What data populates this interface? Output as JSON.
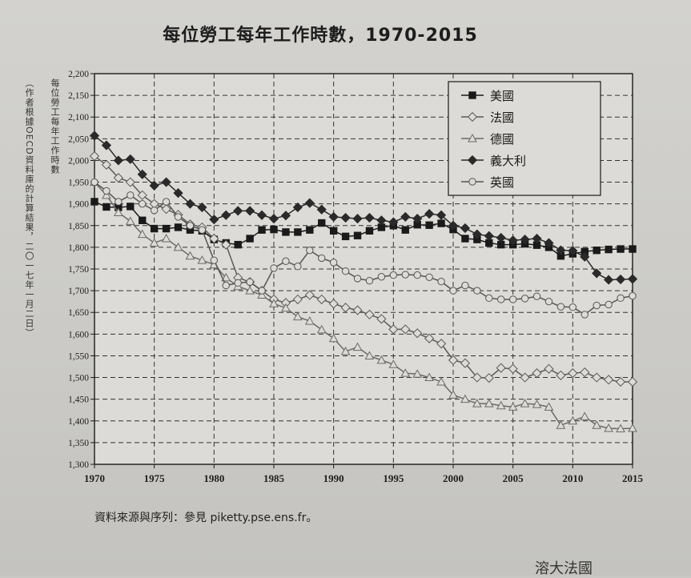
{
  "page": {
    "title": "每位勞工每年工作時數，1970-2015",
    "side_note": "（作者根據OECD資料庫的計算結果，二〇一七年一月二日）",
    "source_note": "資料來源與序列：參見 piketty.pse.ens.fr。",
    "bottom_fragment": "溶大法國"
  },
  "chart_data": {
    "type": "line",
    "title": "每位勞工每年工作時數，1970-2015",
    "xlabel": "",
    "ylabel": "每位勞工每年工作時數",
    "xlim": [
      1970,
      2015
    ],
    "ylim": [
      1300,
      2200
    ],
    "x_ticks": [
      1970,
      1975,
      1980,
      1985,
      1990,
      1995,
      2000,
      2005,
      2010,
      2015
    ],
    "y_ticks": [
      1300,
      1350,
      1400,
      1450,
      1500,
      1550,
      1600,
      1650,
      1700,
      1750,
      1800,
      1850,
      1900,
      1950,
      2000,
      2050,
      2100,
      2150,
      2200
    ],
    "y_tick_labels": [
      "1,300",
      "1,350",
      "1,400",
      "1,450",
      "1,500",
      "1,550",
      "1,600",
      "1,650",
      "1,700",
      "1,750",
      "1,800",
      "1,850",
      "1,900",
      "1,950",
      "2,000",
      "2,050",
      "2,100",
      "2,150",
      "2,200"
    ],
    "grid": true,
    "legend_position": "top-right",
    "x": [
      1970,
      1971,
      1972,
      1973,
      1974,
      1975,
      1976,
      1977,
      1978,
      1979,
      1980,
      1981,
      1982,
      1983,
      1984,
      1985,
      1986,
      1987,
      1988,
      1989,
      1990,
      1991,
      1992,
      1993,
      1994,
      1995,
      1996,
      1997,
      1998,
      1999,
      2000,
      2001,
      2002,
      2003,
      2004,
      2005,
      2006,
      2007,
      2008,
      2009,
      2010,
      2011,
      2012,
      2013,
      2014,
      2015
    ],
    "series": [
      {
        "name": "美國",
        "marker": "square",
        "color": "#1a1a1a",
        "values": [
          1905,
          1893,
          1892,
          1894,
          1862,
          1843,
          1843,
          1846,
          1840,
          1838,
          1818,
          1810,
          1806,
          1820,
          1840,
          1841,
          1835,
          1835,
          1840,
          1856,
          1838,
          1825,
          1827,
          1838,
          1846,
          1850,
          1840,
          1852,
          1851,
          1855,
          1841,
          1820,
          1818,
          1810,
          1806,
          1806,
          1808,
          1805,
          1800,
          1780,
          1785,
          1790,
          1793,
          1795,
          1796,
          1796
        ]
      },
      {
        "name": "法國",
        "marker": "diamond-open",
        "color": "#5a5a5a",
        "values": [
          2010,
          1990,
          1960,
          1950,
          1920,
          1900,
          1888,
          1875,
          1853,
          1846,
          1820,
          1806,
          1730,
          1720,
          1700,
          1680,
          1672,
          1680,
          1690,
          1680,
          1670,
          1661,
          1655,
          1645,
          1635,
          1611,
          1611,
          1602,
          1590,
          1578,
          1540,
          1533,
          1500,
          1499,
          1522,
          1520,
          1500,
          1510,
          1520,
          1505,
          1510,
          1512,
          1500,
          1495,
          1490,
          1490
        ]
      },
      {
        "name": "德國",
        "marker": "triangle-open",
        "color": "#6a6a6a",
        "values": [
          1950,
          1920,
          1880,
          1860,
          1830,
          1810,
          1820,
          1800,
          1780,
          1770,
          1760,
          1730,
          1710,
          1700,
          1690,
          1670,
          1660,
          1640,
          1630,
          1610,
          1590,
          1560,
          1570,
          1550,
          1540,
          1530,
          1510,
          1508,
          1500,
          1490,
          1460,
          1450,
          1440,
          1440,
          1435,
          1432,
          1440,
          1438,
          1432,
          1390,
          1400,
          1410,
          1390,
          1383,
          1382,
          1383
        ]
      },
      {
        "name": "義大利",
        "marker": "diamond",
        "color": "#2a2a2a",
        "values": [
          2057,
          2035,
          2000,
          2003,
          1968,
          1942,
          1950,
          1925,
          1900,
          1892,
          1864,
          1874,
          1884,
          1884,
          1874,
          1866,
          1873,
          1892,
          1902,
          1887,
          1870,
          1868,
          1866,
          1868,
          1862,
          1858,
          1870,
          1866,
          1877,
          1874,
          1850,
          1844,
          1830,
          1826,
          1822,
          1816,
          1818,
          1820,
          1810,
          1793,
          1792,
          1778,
          1740,
          1725,
          1726,
          1727
        ]
      },
      {
        "name": "英國",
        "marker": "circle-open",
        "color": "#555555",
        "values": [
          1950,
          1930,
          1905,
          1920,
          1900,
          1885,
          1905,
          1870,
          1850,
          1840,
          1770,
          1712,
          1718,
          1720,
          1700,
          1752,
          1768,
          1756,
          1793,
          1775,
          1765,
          1745,
          1728,
          1723,
          1732,
          1736,
          1737,
          1736,
          1731,
          1721,
          1700,
          1712,
          1700,
          1683,
          1680,
          1680,
          1682,
          1687,
          1675,
          1663,
          1662,
          1645,
          1666,
          1668,
          1683,
          1688
        ]
      }
    ]
  }
}
